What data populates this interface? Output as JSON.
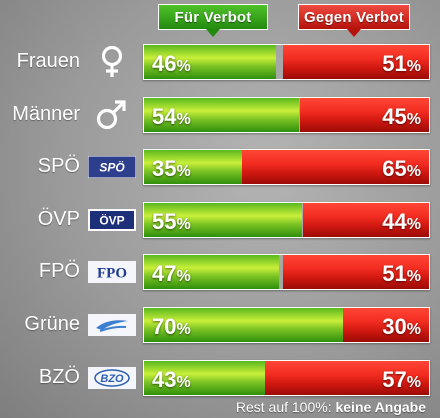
{
  "header": {
    "for_label": "Für Verbot",
    "against_label": "Gegen Verbot"
  },
  "footnote": {
    "prefix": "Rest auf 100%:",
    "bold": "keine Angabe"
  },
  "unit": "%",
  "chart_data": {
    "type": "bar",
    "stacked": true,
    "orientation": "horizontal",
    "categories": [
      "Frauen",
      "Männer",
      "SPÖ",
      "ÖVP",
      "FPÖ",
      "Grüne",
      "BZÖ"
    ],
    "series": [
      {
        "name": "Für Verbot",
        "values": [
          46,
          54,
          35,
          55,
          47,
          70,
          43
        ],
        "color": "#6fc41c"
      },
      {
        "name": "Gegen Verbot",
        "values": [
          51,
          45,
          65,
          44,
          51,
          30,
          57
        ],
        "color": "#e5221a"
      }
    ],
    "xlim": [
      0,
      100
    ]
  },
  "logos": [
    {
      "type": "female-symbol-icon"
    },
    {
      "type": "male-symbol-icon"
    },
    {
      "type": "spo-logo",
      "text": "SPÖ"
    },
    {
      "type": "ovp-logo",
      "text": "ÖVP"
    },
    {
      "type": "fpo-logo",
      "text": "FPO"
    },
    {
      "type": "grune-logo"
    },
    {
      "type": "bzo-logo",
      "text": "BZO"
    }
  ]
}
